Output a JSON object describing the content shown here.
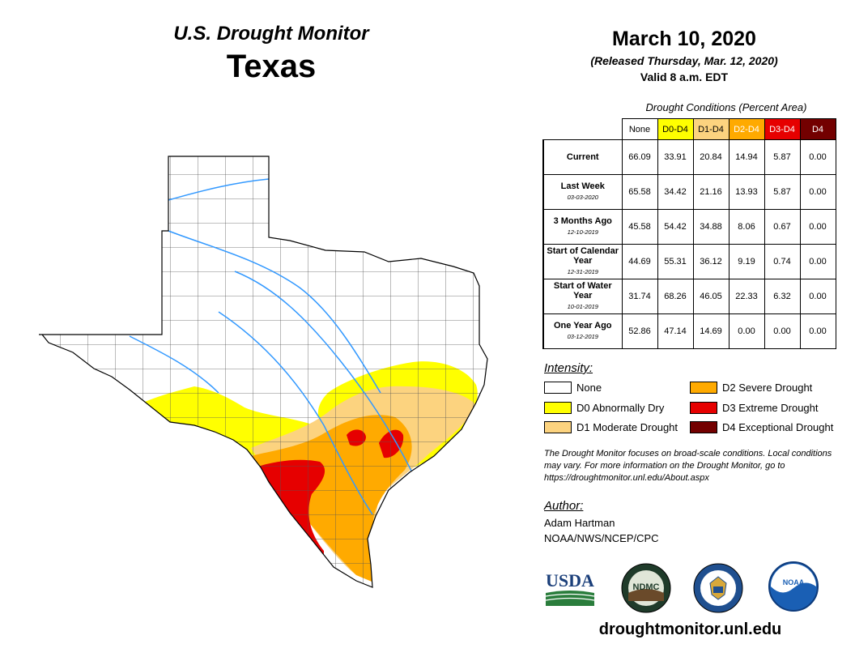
{
  "header": {
    "subtitle": "U.S. Drought Monitor",
    "state": "Texas",
    "date": "March 10, 2020",
    "released": "(Released Thursday, Mar. 12, 2020)",
    "valid": "Valid 8 a.m. EDT"
  },
  "table": {
    "caption": "Drought Conditions (Percent Area)",
    "columns": [
      "None",
      "D0-D4",
      "D1-D4",
      "D2-D4",
      "D3-D4",
      "D4"
    ],
    "rows": [
      {
        "label": "Current",
        "date": "",
        "values": [
          "66.09",
          "33.91",
          "20.84",
          "14.94",
          "5.87",
          "0.00"
        ]
      },
      {
        "label": "Last Week",
        "date": "03-03-2020",
        "values": [
          "65.58",
          "34.42",
          "21.16",
          "13.93",
          "5.87",
          "0.00"
        ]
      },
      {
        "label": "3 Months Ago",
        "date": "12-10-2019",
        "values": [
          "45.58",
          "54.42",
          "34.88",
          "8.06",
          "0.67",
          "0.00"
        ]
      },
      {
        "label": "Start of Calendar Year",
        "date": "12-31-2019",
        "values": [
          "44.69",
          "55.31",
          "36.12",
          "9.19",
          "0.74",
          "0.00"
        ]
      },
      {
        "label": "Start of Water Year",
        "date": "10-01-2019",
        "values": [
          "31.74",
          "68.26",
          "46.05",
          "22.33",
          "6.32",
          "0.00"
        ]
      },
      {
        "label": "One Year Ago",
        "date": "03-12-2019",
        "values": [
          "52.86",
          "47.14",
          "14.69",
          "0.00",
          "0.00",
          "0.00"
        ]
      }
    ]
  },
  "legend": {
    "title": "Intensity:",
    "items": [
      {
        "label": "None",
        "color": "#ffffff"
      },
      {
        "label": "D0 Abnormally Dry",
        "color": "#ffff00"
      },
      {
        "label": "D1 Moderate Drought",
        "color": "#fcd37f"
      },
      {
        "label": "D2 Severe Drought",
        "color": "#ffaa00"
      },
      {
        "label": "D3 Extreme Drought",
        "color": "#e60000"
      },
      {
        "label": "D4 Exceptional Drought",
        "color": "#730000"
      }
    ]
  },
  "note": "The Drought Monitor focuses on broad-scale conditions. Local conditions may vary. For more information on the Drought Monitor, go to https://droughtmonitor.unl.edu/About.aspx",
  "author": {
    "title": "Author:",
    "name": "Adam Hartman",
    "org": "NOAA/NWS/NCEP/CPC"
  },
  "logos": {
    "usda": "USDA",
    "ndmc": "NDMC",
    "noaa": "NOAA"
  },
  "website": "droughtmonitor.unl.edu",
  "colors": {
    "none": "#ffffff",
    "d0": "#ffff00",
    "d1": "#fcd37f",
    "d2": "#ffaa00",
    "d3": "#e60000",
    "d4": "#730000",
    "river": "#3399ff",
    "county_line": "#555555"
  }
}
